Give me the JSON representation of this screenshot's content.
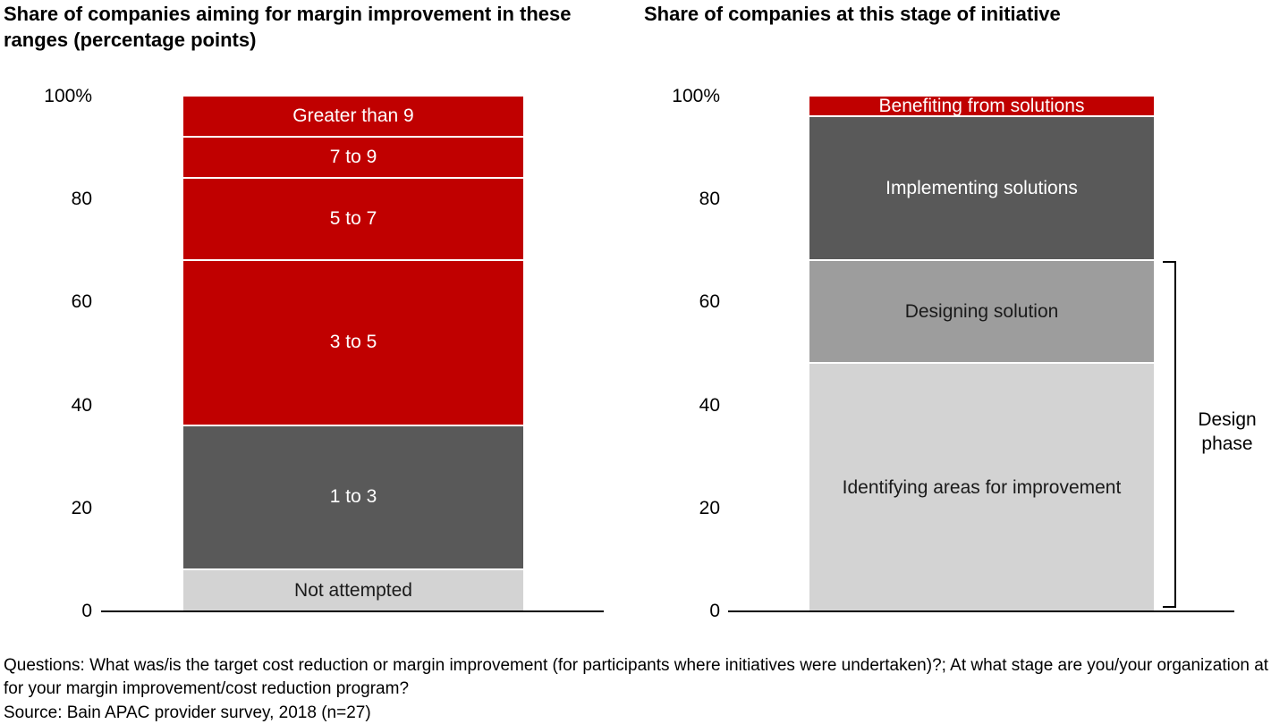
{
  "chart_data": [
    {
      "type": "bar",
      "subtype": "single-stacked-column",
      "title": "Share of companies aiming for margin improvement in these ranges (percentage points)",
      "xlabel": "",
      "ylabel": "",
      "ylim": [
        0,
        100
      ],
      "grid": false,
      "legend": "none (labels inside segments)",
      "y_ticks": [
        "100%",
        "80",
        "60",
        "40",
        "20",
        "0"
      ],
      "segments_bottom_to_top": [
        {
          "label": "Not attempted",
          "value": 8,
          "color": "#d3d3d3",
          "text_color": "#1a1a1a"
        },
        {
          "label": "1 to 3",
          "value": 28,
          "color": "#595959",
          "text_color": "#ffffff"
        },
        {
          "label": "3 to 5",
          "value": 32,
          "color": "#c00000",
          "text_color": "#ffffff"
        },
        {
          "label": "5 to 7",
          "value": 16,
          "color": "#c00000",
          "text_color": "#ffffff"
        },
        {
          "label": "7 to 9",
          "value": 8,
          "color": "#c00000",
          "text_color": "#ffffff"
        },
        {
          "label": "Greater than 9",
          "value": 8,
          "color": "#c00000",
          "text_color": "#ffffff"
        }
      ]
    },
    {
      "type": "bar",
      "subtype": "single-stacked-column",
      "title": "Share of companies at this stage of initiative",
      "xlabel": "",
      "ylabel": "",
      "ylim": [
        0,
        100
      ],
      "grid": false,
      "legend": "none (labels inside segments)",
      "y_ticks": [
        "100%",
        "80",
        "60",
        "40",
        "20",
        "0"
      ],
      "segments_bottom_to_top": [
        {
          "label": "Identifying areas for improvement",
          "value": 48,
          "color": "#d3d3d3",
          "text_color": "#1a1a1a"
        },
        {
          "label": "Designing solution",
          "value": 20,
          "color": "#9d9d9d",
          "text_color": "#1a1a1a"
        },
        {
          "label": "Implementing solutions",
          "value": 28,
          "color": "#595959",
          "text_color": "#ffffff"
        },
        {
          "label": "Benefiting from solutions",
          "value": 4,
          "color": "#c00000",
          "text_color": "#ffffff"
        }
      ],
      "bracket": {
        "label": "Design phase",
        "covers": [
          "Identifying areas for improvement",
          "Designing solution"
        ],
        "from_percent": 0,
        "to_percent": 68
      }
    }
  ],
  "footer": {
    "questions": "Questions: What was/is the target cost reduction or margin improvement (for participants where initiatives were undertaken)?; At what stage are you/your organization at for your margin improvement/cost reduction program?",
    "source": "Source: Bain APAC provider survey, 2018 (n=27)"
  }
}
